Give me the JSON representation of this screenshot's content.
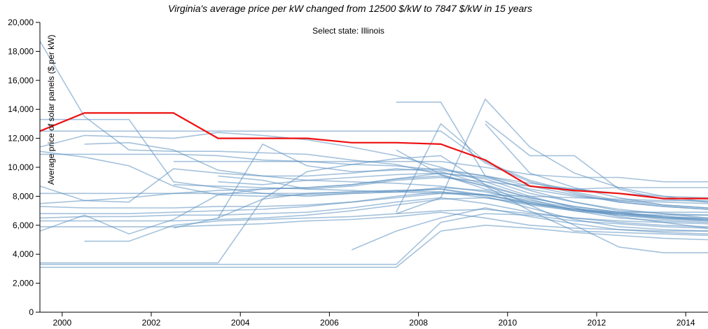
{
  "header": {
    "title": "Virginia's average price per kW changed from 12500 $/kW to 7847 $/kW in 15 years",
    "state_selector": "Select state: Illinois"
  },
  "colors": {
    "background_lines": "#5b8fbf",
    "highlight_line": "#ee1111",
    "axis": "#000000"
  },
  "chart_data": {
    "type": "line",
    "title": "Virginia's average price per kW changed from 12500 $/kW to 7847 $/kW in 15 years",
    "xlabel": "",
    "ylabel": "Average price of solar panels ($ per kW)",
    "xlim": [
      1999.5,
      2014.5
    ],
    "ylim": [
      0,
      20000
    ],
    "x_ticks": [
      2000,
      2002,
      2004,
      2006,
      2008,
      2010,
      2012,
      2014
    ],
    "x_tick_labels": [
      "2000",
      "2002",
      "2004",
      "2006",
      "2008",
      "2010",
      "2012",
      "2014"
    ],
    "y_ticks": [
      0,
      2000,
      4000,
      6000,
      8000,
      10000,
      12000,
      14000,
      16000,
      18000,
      20000
    ],
    "y_tick_labels": [
      "0",
      "2,000",
      "4,000",
      "6,000",
      "8,000",
      "10,000",
      "12,000",
      "14,000",
      "16,000",
      "18,000",
      "20,000"
    ],
    "grid": false,
    "highlight": {
      "x": [
        1999.5,
        2000.5,
        2001.5,
        2002.5,
        2003.5,
        2004.5,
        2005.5,
        2006.5,
        2007.5,
        2008.5,
        2009.5,
        2010.5,
        2011.5,
        2012.5,
        2013.5,
        2014.5
      ],
      "values": [
        12500,
        13750,
        13750,
        13750,
        12000,
        12000,
        12000,
        11700,
        11700,
        11600,
        10500,
        8700,
        8400,
        8200,
        7847,
        7847
      ]
    },
    "series": [
      {
        "x": [
          1999.5,
          2000.5,
          2001.5,
          2002.5,
          2003.5,
          2004.5,
          2005.5,
          2006.5,
          2007.5,
          2008.5,
          2009.5,
          2010.5,
          2011.5,
          2012.5,
          2013.5,
          2014.5
        ],
        "values": [
          18700,
          13500,
          11200,
          11100,
          11100,
          11000,
          10900,
          10500,
          10200,
          9500,
          8500,
          7800,
          7000,
          6500,
          6300,
          6200
        ]
      },
      {
        "x": [
          1999.5,
          2000.5,
          2001.5,
          2002.5,
          2003.5,
          2004.5,
          2005.5,
          2006.5,
          2007.5,
          2008.5,
          2009.5,
          2010.5,
          2011.5,
          2012.5,
          2013.5,
          2014.5
        ],
        "values": [
          13300,
          13300,
          13300,
          9000,
          8600,
          8200,
          8000,
          8200,
          8300,
          8500,
          8000,
          7200,
          6400,
          5900,
          5700,
          5600
        ]
      },
      {
        "x": [
          1999.5,
          2000.5,
          2001.5,
          2002.5,
          2003.5,
          2004.5,
          2005.5,
          2006.5,
          2007.5,
          2008.5,
          2009.5,
          2010.5,
          2011.5,
          2012.5,
          2013.5,
          2014.5
        ],
        "values": [
          11100,
          10700,
          10100,
          8700,
          8100,
          8000,
          8100,
          8200,
          8300,
          8600,
          8400,
          7600,
          7100,
          6700,
          6400,
          6300
        ]
      },
      {
        "x": [
          1999.5,
          2000.5,
          2001.5,
          2002.5,
          2003.5,
          2004.5,
          2005.5,
          2006.5,
          2007.5,
          2008.5,
          2009.5,
          2010.5,
          2011.5,
          2012.5,
          2013.5,
          2014.5
        ],
        "values": [
          11400,
          12200,
          12100,
          12000,
          12400,
          12200,
          11900,
          11400,
          10800,
          10000,
          9000,
          8000,
          7200,
          6600,
          6200,
          5800
        ]
      },
      {
        "x": [
          1999.5,
          2000.5,
          2001.5,
          2002.5,
          2003.5,
          2004.5,
          2005.5,
          2006.5,
          2007.5,
          2008.5,
          2009.5,
          2010.5,
          2011.5,
          2012.5,
          2013.5,
          2014.5
        ],
        "values": [
          12500,
          12500,
          12500,
          12500,
          12500,
          12500,
          12500,
          12500,
          12500,
          12500,
          10300,
          9000,
          8200,
          7600,
          7300,
          7100
        ]
      },
      {
        "x": [
          2000.5,
          2001.5,
          2002.5,
          2003.5,
          2004.5,
          2005.5,
          2006.5,
          2007.5,
          2008.5,
          2009.5,
          2010.5,
          2011.5,
          2012.5,
          2013.5,
          2014.5
        ],
        "values": [
          11600,
          11700,
          11200,
          9800,
          9400,
          9100,
          9000,
          8900,
          8700,
          8300,
          7700,
          7200,
          6800,
          6500,
          6400
        ]
      },
      {
        "x": [
          1999.5,
          2000.5,
          2001.5,
          2002.5,
          2003.5,
          2004.5,
          2005.5,
          2006.5,
          2007.5,
          2008.5,
          2009.5,
          2010.5,
          2011.5,
          2012.5,
          2013.5,
          2014.5
        ],
        "values": [
          8700,
          7700,
          7600,
          9900,
          9600,
          9400,
          9400,
          9600,
          9900,
          9700,
          8800,
          7900,
          7300,
          6900,
          6600,
          6400
        ]
      },
      {
        "x": [
          1999.5,
          2000.5,
          2001.5,
          2002.5,
          2003.5,
          2004.5,
          2005.5,
          2006.5,
          2007.5,
          2008.5,
          2009.5,
          2010.5,
          2011.5,
          2012.5,
          2013.5,
          2014.5
        ],
        "values": [
          7300,
          7200,
          7200,
          7200,
          7300,
          7300,
          7400,
          7600,
          7900,
          8200,
          8100,
          7600,
          7100,
          6800,
          6500,
          6300
        ]
      },
      {
        "x": [
          1999.5,
          2000.5,
          2001.5,
          2002.5,
          2003.5,
          2004.5,
          2005.5,
          2006.5,
          2007.5,
          2008.5,
          2009.5,
          2010.5,
          2011.5,
          2012.5,
          2013.5,
          2014.5
        ],
        "values": [
          5600,
          6700,
          5400,
          6400,
          8100,
          8500,
          8600,
          8800,
          9200,
          9400,
          8700,
          7900,
          7300,
          6900,
          6600,
          6400
        ]
      },
      {
        "x": [
          1999.5,
          2000.5,
          2001.5,
          2002.5,
          2003.5,
          2004.5,
          2005.5,
          2006.5,
          2007.5,
          2008.5,
          2009.5,
          2010.5,
          2011.5,
          2012.5,
          2013.5,
          2014.5
        ],
        "values": [
          6300,
          6300,
          6300,
          6300,
          6400,
          6500,
          6700,
          7000,
          7400,
          7800,
          7900,
          7500,
          7100,
          6800,
          6600,
          6500
        ]
      },
      {
        "x": [
          1999.5,
          2000.5,
          2001.5,
          2002.5,
          2003.5,
          2004.5,
          2005.5,
          2006.5,
          2007.5,
          2008.5,
          2009.5,
          2010.5,
          2011.5,
          2012.5,
          2013.5,
          2014.5
        ],
        "values": [
          3400,
          3400,
          3400,
          3400,
          3400,
          7800,
          8200,
          8300,
          8400,
          8500,
          8100,
          7500,
          7000,
          6700,
          6500,
          6400
        ]
      },
      {
        "x": [
          1999.5,
          2000.5,
          2001.5,
          2002.5,
          2003.5,
          2004.5,
          2005.5,
          2006.5,
          2007.5,
          2008.5,
          2009.5,
          2010.5,
          2011.5,
          2012.5,
          2013.5,
          2014.5
        ],
        "values": [
          3300,
          3300,
          3300,
          3300,
          3300,
          3300,
          3300,
          3300,
          3300,
          6200,
          6800,
          6700,
          6300,
          6100,
          5900,
          5800
        ]
      },
      {
        "x": [
          1999.5,
          2000.5,
          2001.5,
          2002.5,
          2003.5,
          2004.5,
          2005.5,
          2006.5,
          2007.5,
          2008.5,
          2009.5,
          2010.5,
          2011.5,
          2012.5,
          2013.5,
          2014.5
        ],
        "values": [
          3100,
          3100,
          3100,
          3100,
          3100,
          3100,
          3100,
          3100,
          3100,
          5600,
          6000,
          5800,
          5500,
          5300,
          5100,
          5000
        ]
      },
      {
        "x": [
          2000.5,
          2001.5,
          2002.5,
          2003.5,
          2004.5,
          2005.5,
          2006.5,
          2007.5,
          2008.5,
          2009.5,
          2010.5,
          2011.5,
          2012.5,
          2013.5,
          2014.5
        ],
        "values": [
          4900,
          4900,
          6000,
          6300,
          6400,
          6500,
          6600,
          6800,
          7000,
          7100,
          6800,
          6500,
          6300,
          6200,
          6100
        ]
      },
      {
        "x": [
          2007.5,
          2008.5,
          2009.5,
          2010.5,
          2011.5,
          2012.5,
          2013.5,
          2014.5
        ],
        "values": [
          14500,
          14500,
          9400,
          8400,
          7600,
          7000,
          6800,
          6700
        ]
      },
      {
        "x": [
          2007.5,
          2008.5,
          2009.5,
          2010.5,
          2011.5,
          2012.5,
          2013.5,
          2014.5
        ],
        "values": [
          6900,
          13000,
          10400,
          9100,
          8300,
          7700,
          7400,
          7200
        ]
      },
      {
        "x": [
          2007.5,
          2008.5,
          2009.5,
          2010.5,
          2011.5,
          2012.5,
          2013.5,
          2014.5
        ],
        "values": [
          6800,
          7900,
          14700,
          11400,
          9600,
          8600,
          8000,
          7600
        ]
      },
      {
        "x": [
          2009.5,
          2010.5,
          2011.5,
          2012.5,
          2013.5,
          2014.5
        ],
        "values": [
          13200,
          10800,
          10800,
          8500,
          7800,
          7600
        ]
      },
      {
        "x": [
          2009.5,
          2010.5,
          2011.5,
          2012.5,
          2013.5,
          2014.5
        ],
        "values": [
          13000,
          9600,
          8600,
          7900,
          7400,
          7200
        ]
      },
      {
        "x": [
          2003.5,
          2004.5,
          2005.5,
          2006.5,
          2007.5,
          2008.5,
          2009.5,
          2010.5,
          2011.5,
          2012.5,
          2013.5,
          2014.5
        ],
        "values": [
          6500,
          11600,
          10100,
          9700,
          9800,
          9900,
          9400,
          8700,
          8100,
          7600,
          7300,
          7100
        ]
      },
      {
        "x": [
          2006.5,
          2007.5,
          2008.5,
          2009.5,
          2010.5,
          2011.5,
          2012.5,
          2013.5,
          2014.5
        ],
        "values": [
          4300,
          5600,
          6500,
          7200,
          6600,
          6100,
          5700,
          5500,
          5400
        ]
      },
      {
        "x": [
          1999.5,
          2000.5,
          2001.5,
          2002.5,
          2003.5,
          2004.5,
          2005.5,
          2006.5,
          2007.5,
          2008.5,
          2009.5,
          2010.5,
          2011.5,
          2012.5,
          2013.5,
          2014.5
        ],
        "values": [
          10900,
          10900,
          10900,
          10900,
          10800,
          10500,
          10400,
          10200,
          10100,
          9800,
          9400,
          8900,
          8500,
          8200,
          8000,
          7900
        ]
      },
      {
        "x": [
          2002.5,
          2003.5,
          2004.5,
          2005.5,
          2006.5,
          2007.5,
          2008.5,
          2009.5,
          2010.5,
          2011.5,
          2012.5,
          2013.5,
          2014.5
        ],
        "values": [
          10400,
          10400,
          10400,
          10400,
          10400,
          10400,
          10400,
          10000,
          9500,
          9300,
          9300,
          9000,
          9000
        ]
      },
      {
        "x": [
          2003.5,
          2004.5,
          2005.5,
          2006.5,
          2007.5,
          2008.5,
          2009.5,
          2010.5,
          2011.5,
          2012.5,
          2013.5,
          2014.5
        ],
        "values": [
          9400,
          9100,
          8500,
          8700,
          9100,
          9300,
          9000,
          8700,
          8500,
          8600,
          8600,
          8600
        ]
      },
      {
        "x": [
          1999.5,
          2000.5,
          2001.5,
          2002.5,
          2003.5,
          2004.5,
          2005.5,
          2006.5,
          2007.5,
          2008.5,
          2009.5,
          2010.5,
          2011.5,
          2012.5,
          2013.5,
          2014.5
        ],
        "values": [
          7500,
          7700,
          7900,
          8200,
          8400,
          8500,
          8600,
          8800,
          9200,
          9600,
          9300,
          8500,
          8000,
          7700,
          7600,
          7500
        ]
      },
      {
        "x": [
          2002.5,
          2003.5,
          2004.5,
          2005.5,
          2006.5,
          2007.5,
          2008.5,
          2009.5,
          2010.5,
          2011.5,
          2012.5,
          2013.5,
          2014.5
        ],
        "values": [
          8800,
          8700,
          8600,
          8500,
          8400,
          8300,
          8200,
          8100,
          8000,
          7900,
          7800,
          7700,
          7700
        ]
      },
      {
        "x": [
          1999.5,
          2000.5,
          2001.5,
          2002.5,
          2003.5,
          2004.5,
          2005.5,
          2006.5,
          2007.5,
          2008.5,
          2009.5,
          2010.5,
          2011.5,
          2012.5,
          2013.5,
          2014.5
        ],
        "values": [
          6500,
          6600,
          6600,
          6700,
          6700,
          6800,
          6900,
          7200,
          7600,
          7900,
          7500,
          6900,
          6500,
          6200,
          6000,
          5900
        ]
      },
      {
        "x": [
          1999.5,
          2000.5,
          2001.5,
          2002.5,
          2003.5,
          2004.5,
          2005.5,
          2006.5,
          2007.5,
          2008.5,
          2009.5,
          2010.5,
          2011.5,
          2012.5,
          2013.5,
          2014.5
        ],
        "values": [
          5900,
          5900,
          5900,
          5900,
          6000,
          6100,
          6300,
          6400,
          6600,
          6900,
          6500,
          6000,
          5800,
          5700,
          5600,
          5600
        ]
      },
      {
        "x": [
          2002.5,
          2003.5,
          2004.5,
          2005.5,
          2006.5,
          2007.5,
          2008.5,
          2009.5,
          2010.5,
          2011.5,
          2012.5,
          2013.5,
          2014.5
        ],
        "values": [
          5800,
          6500,
          7800,
          9700,
          10200,
          10600,
          10800,
          8800,
          7400,
          6000,
          4500,
          4100,
          4100
        ]
      },
      {
        "x": [
          2007.5,
          2008.5,
          2009.5,
          2010.5,
          2011.5,
          2012.5,
          2013.5,
          2014.5
        ],
        "values": [
          11200,
          9500,
          8700,
          7000,
          5600,
          5500,
          5400,
          5300
        ]
      },
      {
        "x": [
          1999.5,
          2000.5,
          2001.5,
          2002.5,
          2003.5,
          2004.5,
          2005.5,
          2006.5,
          2007.5,
          2008.5,
          2009.5,
          2010.5,
          2011.5,
          2012.5,
          2013.5,
          2014.5
        ],
        "values": [
          6800,
          6800,
          6800,
          6900,
          7000,
          7100,
          7300,
          7600,
          8000,
          8300,
          8100,
          7500,
          7100,
          6900,
          6900,
          6900
        ]
      },
      {
        "x": [
          2003.5,
          2004.5,
          2005.5,
          2006.5,
          2007.5,
          2008.5,
          2009.5,
          2010.5,
          2011.5,
          2012.5,
          2013.5,
          2014.5
        ],
        "values": [
          9000,
          8800,
          9100,
          9300,
          9500,
          9600,
          9200,
          8200,
          7600,
          7100,
          6800,
          6500
        ]
      },
      {
        "x": [
          1999.5,
          2000.5,
          2001.5,
          2002.5,
          2003.5,
          2004.5,
          2005.5,
          2006.5,
          2007.5,
          2008.5,
          2009.5,
          2010.5,
          2011.5,
          2012.5,
          2013.5,
          2014.5
        ],
        "values": [
          8200,
          8200,
          8200,
          8200,
          8200,
          8200,
          8200,
          8300,
          8400,
          8300,
          7900,
          7400,
          7000,
          6800,
          6700,
          6700
        ]
      }
    ]
  }
}
